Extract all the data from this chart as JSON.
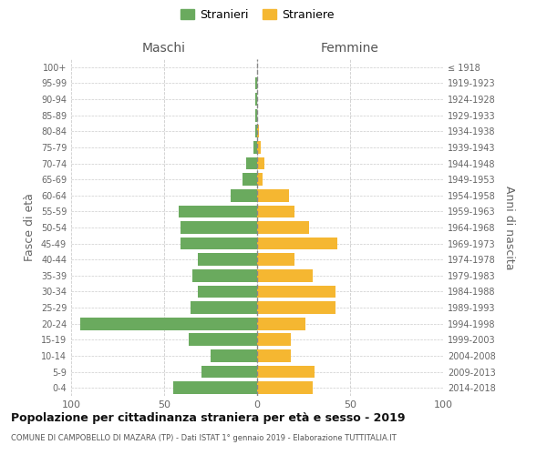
{
  "age_groups_bottom_to_top": [
    "0-4",
    "5-9",
    "10-14",
    "15-19",
    "20-24",
    "25-29",
    "30-34",
    "35-39",
    "40-44",
    "45-49",
    "50-54",
    "55-59",
    "60-64",
    "65-69",
    "70-74",
    "75-79",
    "80-84",
    "85-89",
    "90-94",
    "95-99",
    "100+"
  ],
  "birth_years_bottom_to_top": [
    "2014-2018",
    "2009-2013",
    "2004-2008",
    "1999-2003",
    "1994-1998",
    "1989-1993",
    "1984-1988",
    "1979-1983",
    "1974-1978",
    "1969-1973",
    "1964-1968",
    "1959-1963",
    "1954-1958",
    "1949-1953",
    "1944-1948",
    "1939-1943",
    "1934-1938",
    "1929-1933",
    "1924-1928",
    "1919-1923",
    "≤ 1918"
  ],
  "maschi_bottom_to_top": [
    45,
    30,
    25,
    37,
    95,
    36,
    32,
    35,
    32,
    41,
    41,
    42,
    14,
    8,
    6,
    2,
    1,
    1,
    1,
    1,
    0
  ],
  "femmine_bottom_to_top": [
    30,
    31,
    18,
    18,
    26,
    42,
    42,
    30,
    20,
    43,
    28,
    20,
    17,
    3,
    4,
    2,
    1,
    0,
    0,
    0,
    0
  ],
  "color_maschi": "#6aaa5e",
  "color_femmine": "#f5b731",
  "title": "Popolazione per cittadinanza straniera per età e sesso - 2019",
  "subtitle": "COMUNE DI CAMPOBELLO DI MAZARA (TP) - Dati ISTAT 1° gennaio 2019 - Elaborazione TUTTITALIA.IT",
  "xlabel_left": "Maschi",
  "xlabel_right": "Femmine",
  "ylabel_left": "Fasce di età",
  "ylabel_right": "Anni di nascita",
  "legend_maschi": "Stranieri",
  "legend_femmine": "Straniere",
  "xlim": 100,
  "background_color": "#ffffff",
  "grid_color": "#cccccc"
}
